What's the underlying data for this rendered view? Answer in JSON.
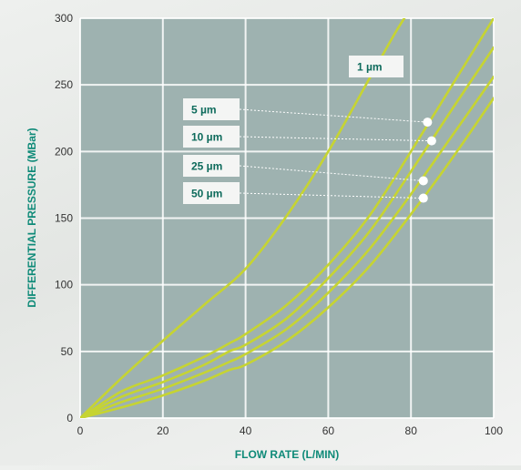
{
  "chart_data": {
    "type": "line",
    "title": "",
    "xlabel": "FLOW RATE (L/MIN)",
    "ylabel": "DIFFERENTIAL PRESSURE (MBar)",
    "xlim": [
      0,
      100
    ],
    "ylim": [
      0,
      300
    ],
    "x_ticks": [
      "0",
      "20",
      "40",
      "60",
      "80",
      "100"
    ],
    "y_ticks": [
      "0",
      "50",
      "100",
      "150",
      "200",
      "250",
      "300"
    ],
    "grid": true,
    "series": [
      {
        "name": "1 µm",
        "x": [
          0,
          10,
          20,
          30,
          40,
          50,
          60,
          70,
          76,
          80,
          82
        ],
        "y": [
          0,
          30,
          58,
          85,
          112,
          152,
          200,
          255,
          288,
          308,
          320
        ]
      },
      {
        "name": "5 µm",
        "x": [
          0,
          10,
          20,
          30,
          36,
          40,
          50,
          60,
          70,
          80,
          90,
          100
        ],
        "y": [
          0,
          20,
          32,
          46,
          56,
          63,
          85,
          115,
          152,
          200,
          250,
          300
        ]
      },
      {
        "name": "10 µm",
        "x": [
          0,
          10,
          20,
          30,
          36,
          40,
          50,
          60,
          70,
          80,
          90,
          100
        ],
        "y": [
          0,
          16,
          27,
          40,
          50,
          55,
          75,
          105,
          140,
          185,
          232,
          278
        ]
      },
      {
        "name": "25 µm",
        "x": [
          0,
          10,
          20,
          30,
          36,
          40,
          50,
          60,
          70,
          80,
          90,
          100
        ],
        "y": [
          0,
          12,
          22,
          34,
          42,
          48,
          67,
          94,
          127,
          168,
          212,
          256
        ]
      },
      {
        "name": "50 µm",
        "x": [
          0,
          10,
          20,
          30,
          36,
          40,
          50,
          60,
          70,
          80,
          90,
          100
        ],
        "y": [
          0,
          8,
          17,
          28,
          36,
          40,
          58,
          83,
          114,
          153,
          195,
          240
        ]
      }
    ],
    "annotations": [
      {
        "label": "1 µm",
        "series": "1 µm"
      },
      {
        "label": "5 µm",
        "series": "5 µm",
        "point": [
          84,
          222
        ]
      },
      {
        "label": "10 µm",
        "series": "10 µm",
        "point": [
          85,
          208
        ]
      },
      {
        "label": "25 µm",
        "series": "25 µm",
        "point": [
          83,
          178
        ]
      },
      {
        "label": "50 µm",
        "series": "50 µm",
        "point": [
          83,
          165
        ]
      }
    ],
    "colors": {
      "plot_background": "#9eb2b0",
      "line": "#c6d432",
      "grid": "#ffffff",
      "axis_title": "#0e8a78",
      "tick_label": "#333333",
      "label_text": "#0e6b5c",
      "label_box": "#f4f5f4"
    }
  }
}
